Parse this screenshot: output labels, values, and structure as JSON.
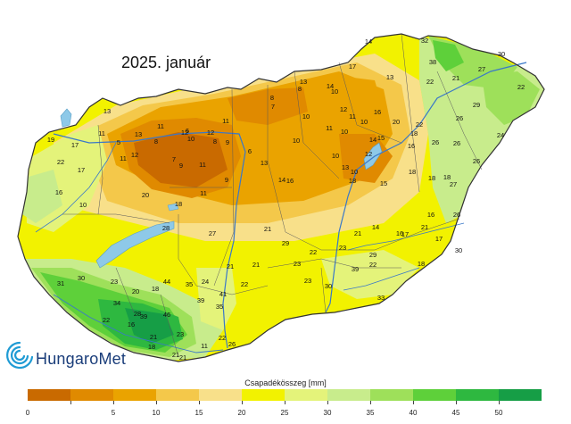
{
  "title": "2025. január",
  "logo": {
    "text": "HungaroMet"
  },
  "legend": {
    "title": "Csapadékösszeg [mm]",
    "ticks": [
      "0",
      "5",
      "10",
      "15",
      "20",
      "25",
      "30",
      "35",
      "40",
      "45",
      "50"
    ],
    "colors": [
      "#c96a00",
      "#e08a00",
      "#eaa300",
      "#f4c84a",
      "#f8e08a",
      "#f2f200",
      "#e4f37a",
      "#c8ec8c",
      "#9ee05a",
      "#5ed03a",
      "#2eb840",
      "#169e46"
    ]
  },
  "stations": [
    {
      "label": "14"
    },
    {
      "label": "32"
    },
    {
      "label": "38"
    },
    {
      "label": "30"
    },
    {
      "label": "27"
    },
    {
      "label": "13"
    },
    {
      "label": "17"
    },
    {
      "label": "8"
    },
    {
      "label": "8"
    },
    {
      "label": "10"
    },
    {
      "label": "22"
    },
    {
      "label": "21"
    },
    {
      "label": "22"
    },
    {
      "label": "16"
    },
    {
      "label": "14"
    },
    {
      "label": "7"
    },
    {
      "label": "13"
    },
    {
      "label": "10"
    },
    {
      "label": "12"
    },
    {
      "label": "11"
    },
    {
      "label": "10"
    },
    {
      "label": "20"
    },
    {
      "label": "26"
    },
    {
      "label": "29"
    },
    {
      "label": "13"
    },
    {
      "label": "11"
    },
    {
      "label": "13"
    },
    {
      "label": "12"
    },
    {
      "label": "10"
    },
    {
      "label": "14"
    },
    {
      "label": "18"
    },
    {
      "label": "22"
    },
    {
      "label": "26"
    },
    {
      "label": "19"
    },
    {
      "label": "17"
    },
    {
      "label": "11"
    },
    {
      "label": "5"
    },
    {
      "label": "8"
    },
    {
      "label": "10"
    },
    {
      "label": "8"
    },
    {
      "label": "6"
    },
    {
      "label": "9"
    },
    {
      "label": "15"
    },
    {
      "label": "16"
    },
    {
      "label": "26"
    },
    {
      "label": "24"
    },
    {
      "label": "12"
    },
    {
      "label": "11"
    },
    {
      "label": "6"
    },
    {
      "label": "10"
    },
    {
      "label": "11"
    },
    {
      "label": "10"
    },
    {
      "label": "12"
    },
    {
      "label": "10"
    },
    {
      "label": "18"
    },
    {
      "label": "26"
    },
    {
      "label": "17"
    },
    {
      "label": "22"
    },
    {
      "label": "7"
    },
    {
      "label": "9"
    },
    {
      "label": "11"
    },
    {
      "label": "13"
    },
    {
      "label": "14"
    },
    {
      "label": "27"
    },
    {
      "label": "18"
    },
    {
      "label": "16"
    },
    {
      "label": "10"
    },
    {
      "label": "12"
    },
    {
      "label": "11"
    },
    {
      "label": "9"
    },
    {
      "label": "16"
    },
    {
      "label": "18"
    },
    {
      "label": "13"
    },
    {
      "label": "15"
    },
    {
      "label": "18"
    },
    {
      "label": "26"
    },
    {
      "label": "16"
    },
    {
      "label": "21"
    },
    {
      "label": "14"
    },
    {
      "label": "16"
    },
    {
      "label": "21"
    },
    {
      "label": "17"
    },
    {
      "label": "30"
    },
    {
      "label": "17"
    },
    {
      "label": "11"
    },
    {
      "label": "18"
    },
    {
      "label": "20"
    },
    {
      "label": "28"
    },
    {
      "label": "27"
    },
    {
      "label": "21"
    },
    {
      "label": "22"
    },
    {
      "label": "29"
    },
    {
      "label": "18"
    },
    {
      "label": "23"
    },
    {
      "label": "22"
    },
    {
      "label": "21"
    },
    {
      "label": "21"
    },
    {
      "label": "29"
    },
    {
      "label": "23"
    },
    {
      "label": "24"
    },
    {
      "label": "22"
    },
    {
      "label": "23"
    },
    {
      "label": "30"
    },
    {
      "label": "39"
    },
    {
      "label": "33"
    },
    {
      "label": "35"
    },
    {
      "label": "31"
    },
    {
      "label": "30"
    },
    {
      "label": "23"
    },
    {
      "label": "20"
    },
    {
      "label": "18"
    },
    {
      "label": "44"
    },
    {
      "label": "41"
    },
    {
      "label": "39"
    },
    {
      "label": "35"
    },
    {
      "label": "34"
    },
    {
      "label": "22"
    },
    {
      "label": "28"
    },
    {
      "label": "46"
    },
    {
      "label": "39"
    },
    {
      "label": "21"
    },
    {
      "label": "23"
    },
    {
      "label": "22"
    },
    {
      "label": "16"
    },
    {
      "label": "18"
    },
    {
      "label": "21"
    },
    {
      "label": "21"
    },
    {
      "label": "11"
    },
    {
      "label": "26"
    }
  ]
}
